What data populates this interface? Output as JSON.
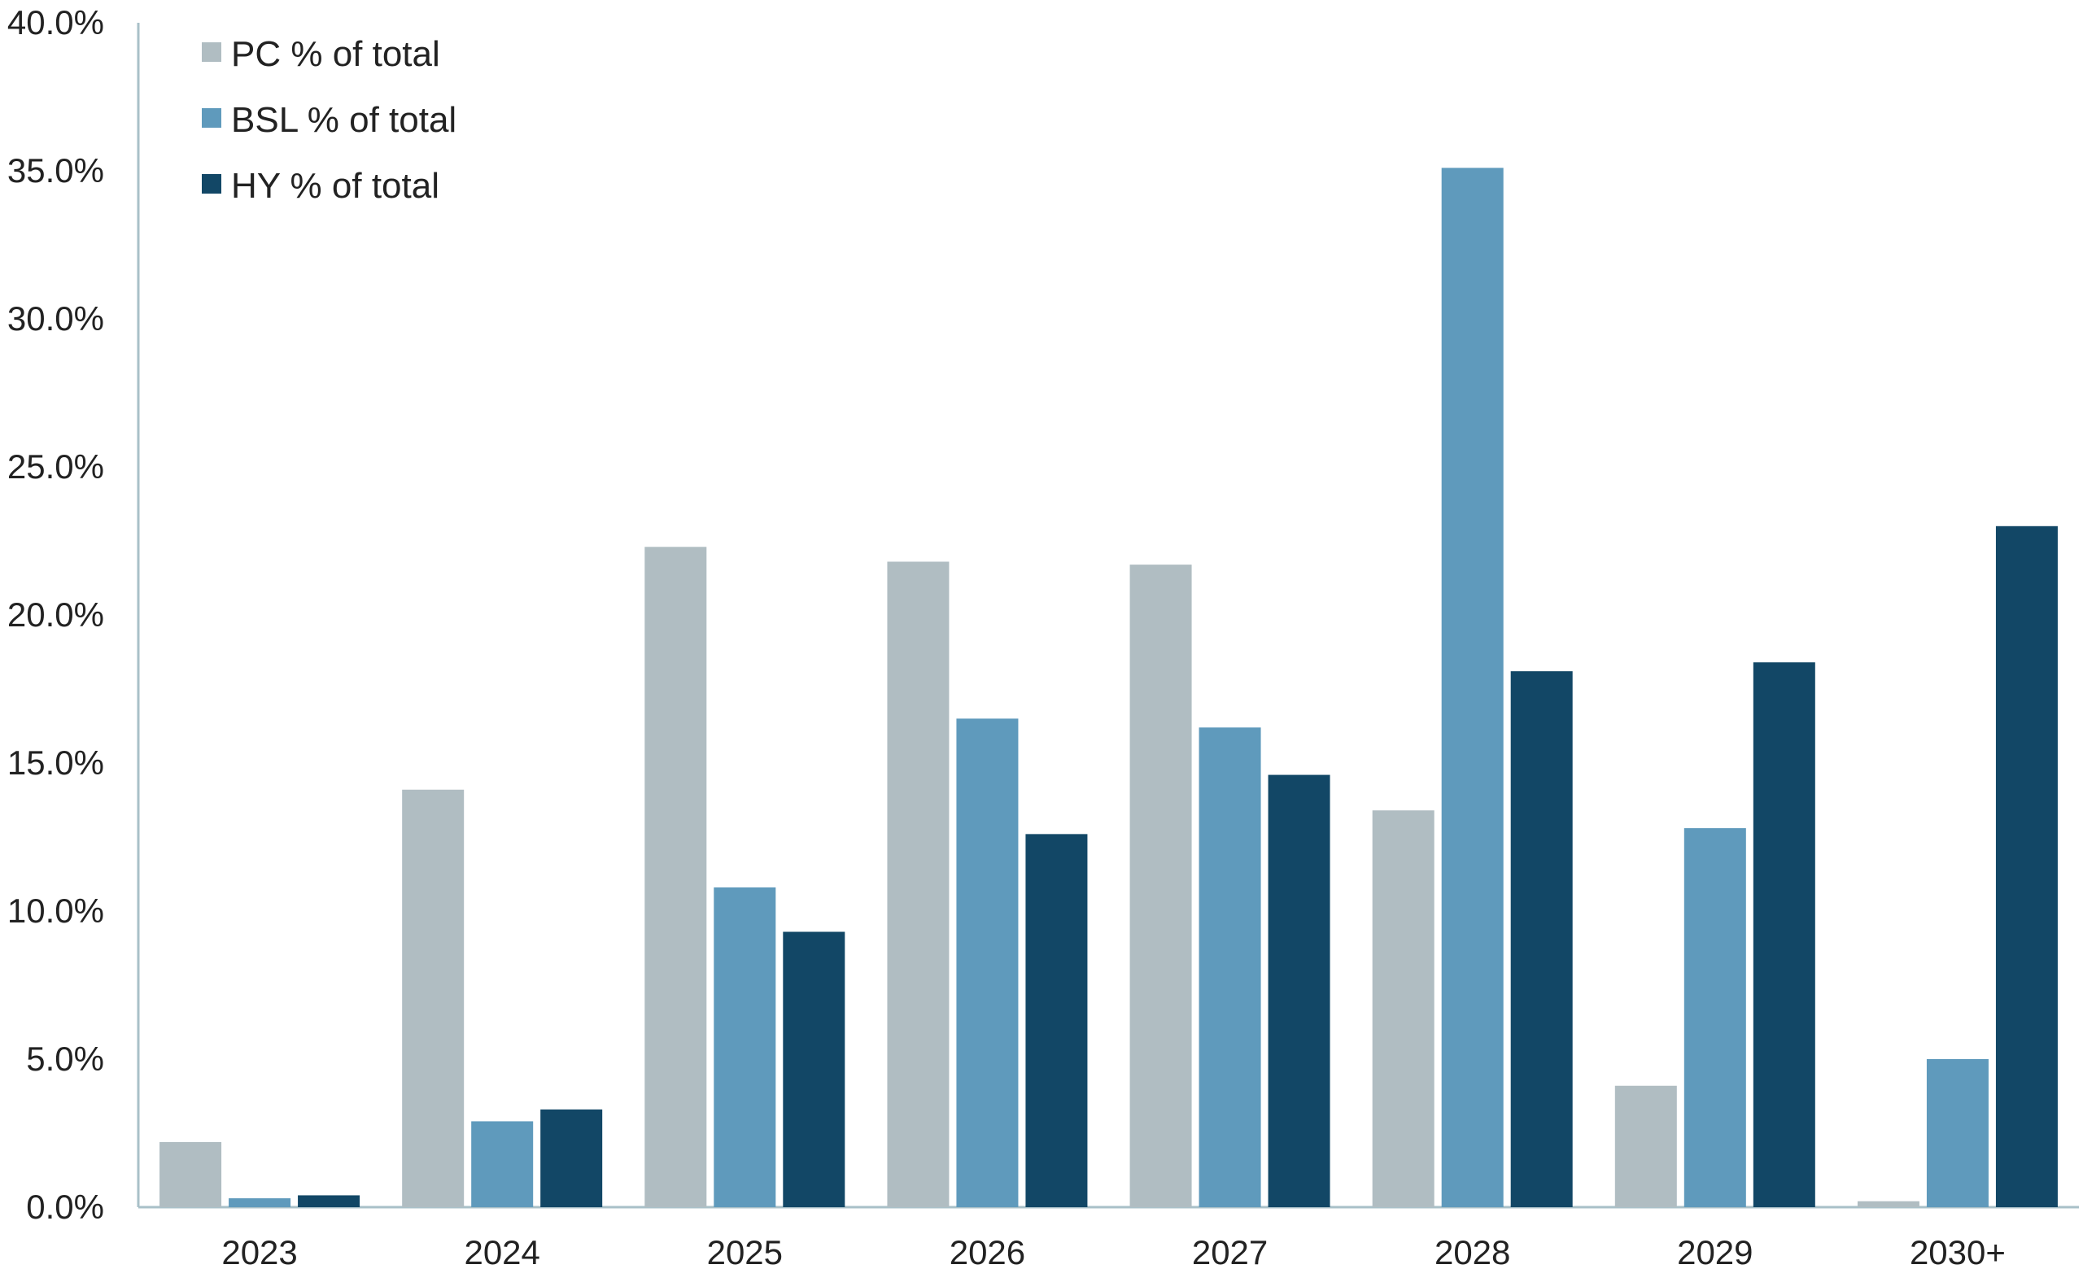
{
  "chart_data": {
    "type": "bar",
    "title": "",
    "xlabel": "",
    "ylabel": "",
    "categories": [
      "2023",
      "2024",
      "2025",
      "2026",
      "2027",
      "2028",
      "2029",
      "2030+"
    ],
    "series": [
      {
        "name": "PC % of total",
        "color": "#b0bdc2",
        "values": [
          2.2,
          14.1,
          22.3,
          21.8,
          21.7,
          13.4,
          4.1,
          0.2
        ]
      },
      {
        "name": "BSL % of total",
        "color": "#5f9abc",
        "values": [
          0.3,
          2.9,
          10.8,
          16.5,
          16.2,
          35.1,
          12.8,
          5.0
        ]
      },
      {
        "name": "HY % of total",
        "color": "#124766",
        "values": [
          0.4,
          3.3,
          9.3,
          12.6,
          14.6,
          18.1,
          18.4,
          23.0
        ]
      }
    ],
    "ylim": [
      0,
      40
    ],
    "yticks": [
      "0.0%",
      "5.0%",
      "10.0%",
      "15.0%",
      "20.0%",
      "25.0%",
      "30.0%",
      "35.0%",
      "40.0%"
    ],
    "grid": false,
    "legend_position": "top-left",
    "axis_color": "#a9c0c8"
  }
}
